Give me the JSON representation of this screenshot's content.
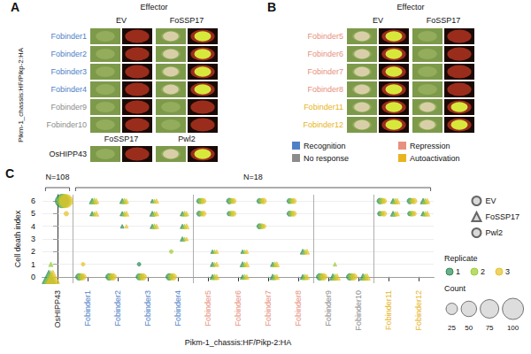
{
  "groups": [
    {
      "name": "Recognition",
      "color": "#4f81c7"
    },
    {
      "name": "Repression",
      "color": "#e8907e"
    },
    {
      "name": "No response",
      "color": "#8c8c8c"
    },
    {
      "name": "Autoactivation",
      "color": "#e8b422"
    }
  ],
  "panel_A": {
    "letter": "A",
    "effector_header": "Effector",
    "columns": [
      "EV",
      "FoSSP17"
    ],
    "side_label": "Pikm-1_chassis:HF/Pikp-2:HA",
    "rows": [
      {
        "name": "Fobinder1",
        "group": "Recognition",
        "cell_death": [
          false,
          true
        ]
      },
      {
        "name": "Fobinder2",
        "group": "Recognition",
        "cell_death": [
          false,
          true
        ]
      },
      {
        "name": "Fobinder3",
        "group": "Recognition",
        "cell_death": [
          false,
          true
        ]
      },
      {
        "name": "Fobinder4",
        "group": "Recognition",
        "cell_death": [
          false,
          true
        ]
      },
      {
        "name": "Fobinder9",
        "group": "No response",
        "cell_death": [
          false,
          false
        ]
      },
      {
        "name": "Fobinder10",
        "group": "No response",
        "cell_death": [
          false,
          false
        ]
      }
    ],
    "control": {
      "name": "OsHIPP43",
      "columns": [
        "FoSSP17",
        "Pwl2"
      ],
      "cell_death": [
        false,
        true
      ]
    }
  },
  "panel_B": {
    "letter": "B",
    "effector_header": "Effector",
    "columns": [
      "EV",
      "FoSSP17"
    ],
    "rows": [
      {
        "name": "Fobinder5",
        "group": "Repression",
        "cell_death": [
          true,
          false
        ]
      },
      {
        "name": "Fobinder6",
        "group": "Repression",
        "cell_death": [
          true,
          false
        ]
      },
      {
        "name": "Fobinder7",
        "group": "Repression",
        "cell_death": [
          true,
          false
        ]
      },
      {
        "name": "Fobinder8",
        "group": "Repression",
        "cell_death": [
          true,
          false
        ]
      },
      {
        "name": "Fobinder11",
        "group": "Autoactivation",
        "cell_death": [
          true,
          true
        ]
      },
      {
        "name": "Fobinder12",
        "group": "Autoactivation",
        "cell_death": [
          true,
          true
        ]
      }
    ]
  },
  "chart_data": {
    "type": "scatter",
    "letter": "C",
    "xlabel": "Pikm-1_chassis:HF/Pikp-2:HA",
    "ylabel": "Cell death index",
    "ylim": [
      -0.5,
      6.5
    ],
    "yticks": [
      0,
      1,
      2,
      3,
      4,
      5,
      6
    ],
    "grid": true,
    "legend": "right",
    "categories": [
      "OsHIPP43",
      "Fobinder1",
      "Fobinder2",
      "Fobinder3",
      "Fobinder4",
      "Fobinder5",
      "Fobinder6",
      "Fobinder7",
      "Fobinder8",
      "Fobinder9",
      "Fobinder10",
      "Fobinder11",
      "Fobinder12"
    ],
    "category_groups": [
      null,
      "Recognition",
      "Recognition",
      "Recognition",
      "Recognition",
      "Repression",
      "Repression",
      "Repression",
      "Repression",
      "No response",
      "No response",
      "Autoactivation",
      "Autoactivation"
    ],
    "category_effectors": [
      [
        "FoSSP17",
        "Pwl2"
      ],
      [
        "EV",
        "FoSSP17"
      ],
      [
        "EV",
        "FoSSP17"
      ],
      [
        "EV",
        "FoSSP17"
      ],
      [
        "EV",
        "FoSSP17"
      ],
      [
        "EV",
        "FoSSP17"
      ],
      [
        "EV",
        "FoSSP17"
      ],
      [
        "EV",
        "FoSSP17"
      ],
      [
        "EV",
        "FoSSP17"
      ],
      [
        "EV",
        "FoSSP17"
      ],
      [
        "EV",
        "FoSSP17"
      ],
      [
        "EV",
        "FoSSP17"
      ],
      [
        "EV",
        "FoSSP17"
      ]
    ],
    "annotations": [
      {
        "text": "N=108",
        "from": "OsHIPP43",
        "to": "OsHIPP43"
      },
      {
        "text": "N=18",
        "from": "Fobinder1",
        "to": "Fobinder12"
      }
    ],
    "replicates": {
      "title": "Replicate",
      "names": [
        "1",
        "2",
        "3"
      ],
      "colors": [
        "#2e8b57",
        "#9acd32",
        "#e6c229"
      ]
    },
    "size_legend": {
      "title": "Count",
      "values": [
        25,
        50,
        75,
        100
      ]
    },
    "series": [
      {
        "name": "EV",
        "marker": "circle",
        "values": [
          [
            "Fobinder1",
            "1",
            0,
            6
          ],
          [
            "Fobinder1",
            "2",
            0,
            6
          ],
          [
            "Fobinder1",
            "3",
            0,
            5
          ],
          [
            "Fobinder1",
            "3",
            1,
            1
          ],
          [
            "Fobinder2",
            "1",
            0,
            6
          ],
          [
            "Fobinder2",
            "2",
            0,
            6
          ],
          [
            "Fobinder2",
            "3",
            0,
            6
          ],
          [
            "Fobinder3",
            "1",
            0,
            5
          ],
          [
            "Fobinder3",
            "1",
            1,
            1
          ],
          [
            "Fobinder3",
            "2",
            0,
            6
          ],
          [
            "Fobinder3",
            "3",
            0,
            6
          ],
          [
            "Fobinder4",
            "1",
            0,
            6
          ],
          [
            "Fobinder4",
            "2",
            0,
            5
          ],
          [
            "Fobinder4",
            "2",
            2,
            1
          ],
          [
            "Fobinder4",
            "3",
            0,
            6
          ],
          [
            "Fobinder5",
            "1",
            6,
            3
          ],
          [
            "Fobinder5",
            "1",
            5,
            3
          ],
          [
            "Fobinder5",
            "2",
            6,
            4
          ],
          [
            "Fobinder5",
            "2",
            5,
            2
          ],
          [
            "Fobinder5",
            "3",
            6,
            3
          ],
          [
            "Fobinder5",
            "3",
            5,
            3
          ],
          [
            "Fobinder6",
            "1",
            6,
            4
          ],
          [
            "Fobinder6",
            "1",
            5,
            2
          ],
          [
            "Fobinder6",
            "2",
            6,
            3
          ],
          [
            "Fobinder6",
            "2",
            5,
            3
          ],
          [
            "Fobinder6",
            "3",
            6,
            3
          ],
          [
            "Fobinder6",
            "3",
            5,
            3
          ],
          [
            "Fobinder7",
            "1",
            6,
            3
          ],
          [
            "Fobinder7",
            "1",
            4,
            3
          ],
          [
            "Fobinder7",
            "2",
            6,
            3
          ],
          [
            "Fobinder7",
            "2",
            4,
            3
          ],
          [
            "Fobinder7",
            "3",
            6,
            4
          ],
          [
            "Fobinder7",
            "3",
            4,
            2
          ],
          [
            "Fobinder8",
            "1",
            5,
            3
          ],
          [
            "Fobinder8",
            "1",
            6,
            3
          ],
          [
            "Fobinder8",
            "2",
            5,
            3
          ],
          [
            "Fobinder8",
            "2",
            6,
            3
          ],
          [
            "Fobinder8",
            "3",
            5,
            3
          ],
          [
            "Fobinder8",
            "3",
            6,
            3
          ],
          [
            "Fobinder9",
            "1",
            0,
            6
          ],
          [
            "Fobinder9",
            "2",
            0,
            6
          ],
          [
            "Fobinder9",
            "3",
            0,
            6
          ],
          [
            "Fobinder10",
            "1",
            0,
            6
          ],
          [
            "Fobinder10",
            "2",
            0,
            6
          ],
          [
            "Fobinder10",
            "3",
            0,
            6
          ],
          [
            "Fobinder11",
            "1",
            6,
            4
          ],
          [
            "Fobinder11",
            "1",
            5,
            2
          ],
          [
            "Fobinder11",
            "2",
            6,
            4
          ],
          [
            "Fobinder11",
            "2",
            5,
            2
          ],
          [
            "Fobinder11",
            "3",
            6,
            3
          ],
          [
            "Fobinder11",
            "3",
            5,
            3
          ],
          [
            "Fobinder12",
            "1",
            6,
            4
          ],
          [
            "Fobinder12",
            "1",
            5,
            2
          ],
          [
            "Fobinder12",
            "2",
            6,
            3
          ],
          [
            "Fobinder12",
            "2",
            5,
            3
          ],
          [
            "Fobinder12",
            "3",
            6,
            4
          ],
          [
            "Fobinder12",
            "3",
            5,
            2
          ]
        ]
      },
      {
        "name": "FoSSP17",
        "marker": "triangle",
        "values": [
          [
            "OsHIPP43",
            "1",
            0,
            36
          ],
          [
            "OsHIPP43",
            "2",
            0,
            34
          ],
          [
            "OsHIPP43",
            "2",
            1,
            2
          ],
          [
            "OsHIPP43",
            "3",
            0,
            36
          ],
          [
            "Fobinder1",
            "1",
            6,
            4
          ],
          [
            "Fobinder1",
            "1",
            5,
            2
          ],
          [
            "Fobinder1",
            "2",
            6,
            5
          ],
          [
            "Fobinder1",
            "2",
            5,
            1
          ],
          [
            "Fobinder1",
            "3",
            6,
            3
          ],
          [
            "Fobinder1",
            "3",
            5,
            3
          ],
          [
            "Fobinder2",
            "1",
            6,
            3
          ],
          [
            "Fobinder2",
            "1",
            5,
            2
          ],
          [
            "Fobinder2",
            "1",
            4,
            1
          ],
          [
            "Fobinder2",
            "2",
            6,
            4
          ],
          [
            "Fobinder2",
            "2",
            5,
            2
          ],
          [
            "Fobinder2",
            "3",
            6,
            2
          ],
          [
            "Fobinder2",
            "3",
            5,
            3
          ],
          [
            "Fobinder2",
            "3",
            4,
            1
          ],
          [
            "Fobinder3",
            "1",
            5,
            3
          ],
          [
            "Fobinder3",
            "1",
            4,
            2
          ],
          [
            "Fobinder3",
            "1",
            6,
            1
          ],
          [
            "Fobinder3",
            "2",
            5,
            2
          ],
          [
            "Fobinder3",
            "2",
            4,
            3
          ],
          [
            "Fobinder3",
            "2",
            6,
            1
          ],
          [
            "Fobinder3",
            "3",
            5,
            2
          ],
          [
            "Fobinder3",
            "3",
            4,
            2
          ],
          [
            "Fobinder3",
            "3",
            6,
            2
          ],
          [
            "Fobinder4",
            "1",
            4,
            2
          ],
          [
            "Fobinder4",
            "1",
            5,
            2
          ],
          [
            "Fobinder4",
            "1",
            3,
            2
          ],
          [
            "Fobinder4",
            "2",
            4,
            2
          ],
          [
            "Fobinder4",
            "2",
            5,
            3
          ],
          [
            "Fobinder4",
            "2",
            3,
            1
          ],
          [
            "Fobinder4",
            "3",
            4,
            3
          ],
          [
            "Fobinder4",
            "3",
            5,
            2
          ],
          [
            "Fobinder4",
            "3",
            3,
            1
          ],
          [
            "Fobinder5",
            "1",
            0,
            3
          ],
          [
            "Fobinder5",
            "1",
            1,
            2
          ],
          [
            "Fobinder5",
            "1",
            2,
            1
          ],
          [
            "Fobinder5",
            "2",
            0,
            4
          ],
          [
            "Fobinder5",
            "2",
            1,
            1
          ],
          [
            "Fobinder5",
            "2",
            2,
            1
          ],
          [
            "Fobinder5",
            "3",
            0,
            3
          ],
          [
            "Fobinder5",
            "3",
            1,
            2
          ],
          [
            "Fobinder5",
            "3",
            2,
            1
          ],
          [
            "Fobinder6",
            "1",
            1,
            3
          ],
          [
            "Fobinder6",
            "1",
            0,
            2
          ],
          [
            "Fobinder6",
            "1",
            2,
            1
          ],
          [
            "Fobinder6",
            "2",
            1,
            2
          ],
          [
            "Fobinder6",
            "2",
            0,
            3
          ],
          [
            "Fobinder6",
            "2",
            2,
            1
          ],
          [
            "Fobinder6",
            "3",
            1,
            3
          ],
          [
            "Fobinder6",
            "3",
            0,
            2
          ],
          [
            "Fobinder6",
            "3",
            2,
            1
          ],
          [
            "Fobinder7",
            "1",
            0,
            4
          ],
          [
            "Fobinder7",
            "1",
            1,
            2
          ],
          [
            "Fobinder7",
            "2",
            0,
            3
          ],
          [
            "Fobinder7",
            "2",
            1,
            3
          ],
          [
            "Fobinder7",
            "3",
            0,
            3
          ],
          [
            "Fobinder7",
            "3",
            1,
            3
          ],
          [
            "Fobinder8",
            "1",
            0,
            3
          ],
          [
            "Fobinder8",
            "1",
            2,
            3
          ],
          [
            "Fobinder8",
            "2",
            0,
            4
          ],
          [
            "Fobinder8",
            "2",
            2,
            2
          ],
          [
            "Fobinder8",
            "3",
            0,
            3
          ],
          [
            "Fobinder8",
            "3",
            2,
            3
          ],
          [
            "Fobinder9",
            "1",
            0,
            6
          ],
          [
            "Fobinder9",
            "2",
            0,
            5
          ],
          [
            "Fobinder9",
            "2",
            1,
            1
          ],
          [
            "Fobinder9",
            "3",
            0,
            6
          ],
          [
            "Fobinder10",
            "1",
            0,
            6
          ],
          [
            "Fobinder10",
            "2",
            0,
            6
          ],
          [
            "Fobinder10",
            "3",
            0,
            6
          ],
          [
            "Fobinder11",
            "1",
            6,
            3
          ],
          [
            "Fobinder11",
            "1",
            5,
            3
          ],
          [
            "Fobinder11",
            "2",
            6,
            4
          ],
          [
            "Fobinder11",
            "2",
            5,
            2
          ],
          [
            "Fobinder11",
            "3",
            6,
            4
          ],
          [
            "Fobinder11",
            "3",
            5,
            2
          ],
          [
            "Fobinder12",
            "1",
            6,
            4
          ],
          [
            "Fobinder12",
            "1",
            5,
            2
          ],
          [
            "Fobinder12",
            "2",
            6,
            4
          ],
          [
            "Fobinder12",
            "2",
            5,
            2
          ],
          [
            "Fobinder12",
            "3",
            6,
            3
          ],
          [
            "Fobinder12",
            "3",
            5,
            3
          ]
        ]
      },
      {
        "name": "Pwl2",
        "marker": "circle",
        "values": [
          [
            "OsHIPP43",
            "1",
            6,
            36
          ],
          [
            "OsHIPP43",
            "2",
            6,
            36
          ],
          [
            "OsHIPP43",
            "3",
            6,
            34
          ],
          [
            "OsHIPP43",
            "3",
            5,
            2
          ]
        ]
      }
    ]
  }
}
